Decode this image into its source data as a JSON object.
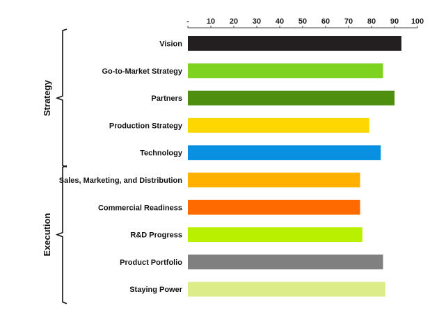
{
  "chart_data": {
    "type": "bar",
    "orientation": "horizontal",
    "categories": [
      "Vision",
      "Go-to-Market Strategy",
      "Partners",
      "Production Strategy",
      "Technology",
      "Sales, Marketing, and Distribution",
      "Commercial Readiness",
      "R&D Progress",
      "Product Portfolio",
      "Staying Power"
    ],
    "values": [
      93,
      85,
      90,
      79,
      84,
      75,
      75,
      76,
      85,
      86
    ],
    "colors": [
      "#231f20",
      "#7ed321",
      "#4f8f0f",
      "#ffd700",
      "#0a90e0",
      "#ffb000",
      "#ff6a00",
      "#b8f000",
      "#808080",
      "#dcec88"
    ],
    "xlim": [
      0,
      100
    ],
    "x_ticks": [
      "-",
      "10",
      "20",
      "30",
      "40",
      "50",
      "60",
      "70",
      "80",
      "90",
      "100"
    ],
    "axis_position": "top",
    "grid": false,
    "groups": [
      {
        "label": "Strategy",
        "start": 0,
        "end": 4
      },
      {
        "label": "Execution",
        "start": 5,
        "end": 9
      }
    ]
  }
}
